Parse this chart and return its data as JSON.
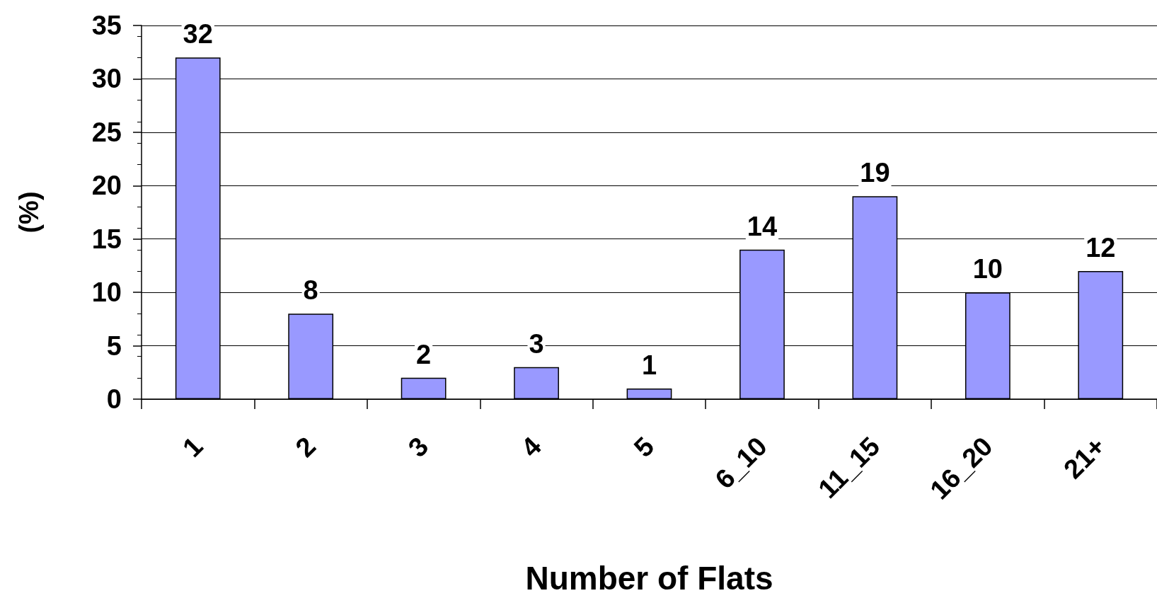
{
  "chart_data": {
    "type": "bar",
    "xlabel": "Number of Flats",
    "ylabel": "(%)",
    "categories": [
      "1",
      "2",
      "3",
      "4",
      "5",
      "6_10",
      "11_15",
      "16_20",
      "21+"
    ],
    "values": [
      32,
      8,
      2,
      3,
      1,
      14,
      19,
      10,
      12
    ],
    "color": "#9999ff",
    "data_labels": true,
    "grid": "y",
    "ylim": [
      0,
      35
    ],
    "yticks": [
      0,
      5,
      10,
      15,
      20,
      25,
      30,
      35
    ]
  }
}
